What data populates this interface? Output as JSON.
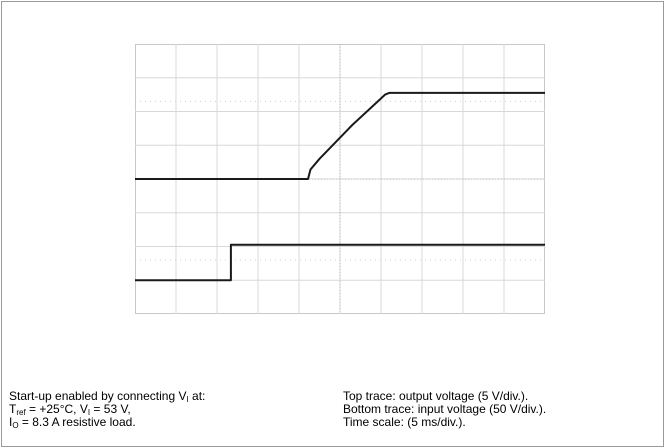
{
  "chart_data": {
    "type": "line",
    "title": "",
    "grid": true,
    "divisions": {
      "x": 10,
      "y": 8
    },
    "x": {
      "unit": "ms",
      "scale_per_div": 5,
      "range": [
        0,
        50
      ]
    },
    "series": [
      {
        "name": "Top trace: output voltage",
        "scale_per_div": "5 V/div.",
        "points": [
          [
            0,
            0
          ],
          [
            21.1,
            0
          ],
          [
            21.4,
            0.28
          ],
          [
            22.5,
            0.6
          ],
          [
            26.5,
            1.6
          ],
          [
            30.5,
            2.5
          ],
          [
            31,
            2.55
          ],
          [
            50,
            2.55
          ]
        ]
      },
      {
        "name": "Bottom trace: input voltage",
        "scale_per_div": "50 V/div.",
        "points": [
          [
            0,
            -3
          ],
          [
            11.7,
            -3
          ],
          [
            11.7,
            -1.95
          ],
          [
            50,
            -1.95
          ]
        ]
      }
    ]
  },
  "caption_left": {
    "line1_prefix": "Start-up enabled by connecting V",
    "line1_sub": "I",
    "line1_suffix": " at:",
    "line2_prefix": "T",
    "line2_sub1": "ref",
    "line2_mid": " = +25°C, V",
    "line2_sub2": "I",
    "line2_suffix": " = 53 V,",
    "line3_prefix": "I",
    "line3_sub": "O",
    "line3_suffix": " = 8.3 A resistive load."
  },
  "caption_right": {
    "line1": "Top trace: output voltage (5 V/div.).",
    "line2": "Bottom trace: input voltage (50 V/div.).",
    "line3": "Time scale: (5 ms/div.)."
  }
}
